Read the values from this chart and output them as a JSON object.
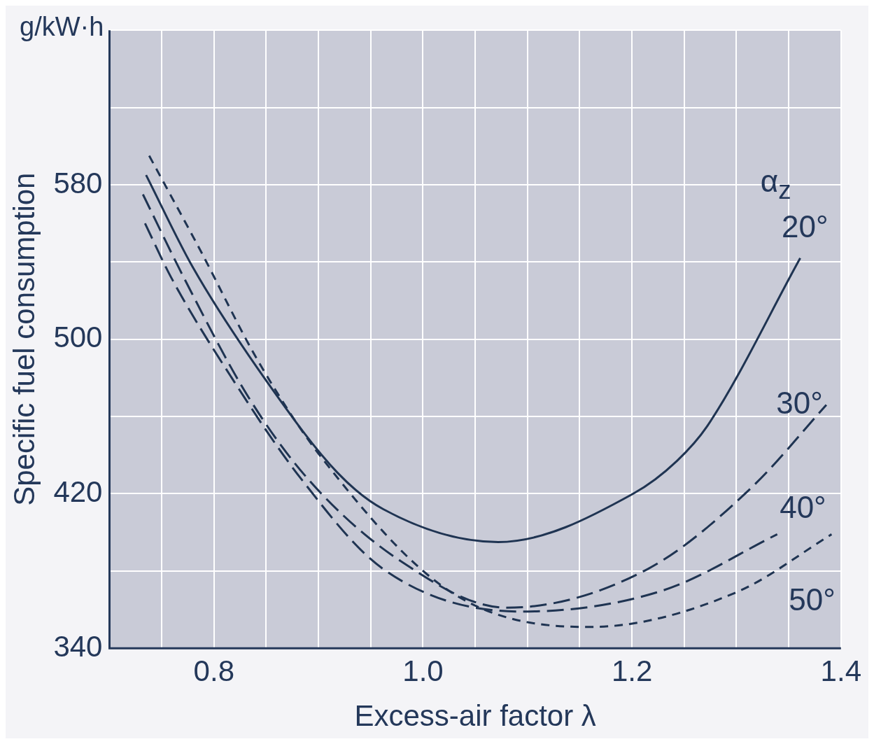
{
  "chart_data": {
    "type": "line",
    "xlabel": "Excess-air factor λ",
    "ylabel": "Specific fuel consumption",
    "legend_title": "α$_{z}$",
    "annotations": [
      "g/kW·h"
    ],
    "xlim": [
      0.7,
      1.4
    ],
    "xticks": [
      {
        "value": 0.75,
        "label": null
      },
      0.8,
      {
        "value": 0.85,
        "label": null
      },
      {
        "value": 0.9,
        "label": null
      },
      {
        "value": 0.95,
        "label": null
      },
      {
        "value": 1,
        "label": "1.0"
      },
      {
        "value": 1.05,
        "label": null
      },
      {
        "value": 1.1,
        "label": null
      },
      {
        "value": 1.15,
        "label": null
      },
      1.2,
      {
        "value": 1.25,
        "label": null
      },
      {
        "value": 1.3,
        "label": null
      },
      {
        "value": 1.35,
        "label": null
      },
      1.4
    ],
    "ylim": [
      340,
      660
    ],
    "yticks": [
      340,
      {
        "value": 380,
        "label": null
      },
      420,
      {
        "value": 460,
        "label": null
      },
      500,
      {
        "value": 540,
        "label": null
      },
      580,
      {
        "value": 620,
        "label": null
      },
      {
        "value": 660,
        "label": null
      }
    ],
    "grid": true,
    "marker": "none",
    "series": [
      {
        "name": "20°",
        "color": "#1f3452",
        "line_style": "solid",
        "x": [
          0.735,
          0.78,
          0.852,
          0.918,
          0.962,
          1.072,
          1.201,
          1.243,
          1.272,
          1.361
        ],
        "values": [
          585,
          537,
          477,
          431,
          412,
          395,
          420,
          437,
          455,
          542
        ]
      },
      {
        "name": "30°",
        "color": "#1f3452",
        "line_style": "dashed",
        "x": [
          0.732,
          0.772,
          0.833,
          0.891,
          0.979,
          1.08,
          1.215,
          1.314,
          1.386
        ],
        "values": [
          575,
          531,
          470,
          427,
          385,
          361,
          381,
          423,
          466
        ]
      },
      {
        "name": "40°",
        "color": "#1f3452",
        "line_style": "dashed",
        "x": [
          0.734,
          0.759,
          0.817,
          0.883,
          0.962,
          1.094,
          1.23,
          1.339
        ],
        "values": [
          560,
          532,
          480,
          428,
          381,
          359,
          370,
          399
        ]
      },
      {
        "name": "50°",
        "color": "#1f3452",
        "line_style": "dashed",
        "x": [
          0.738,
          0.786,
          0.843,
          0.904,
          1.027,
          1.159,
          1.3,
          1.391
        ],
        "values": [
          595,
          547,
          488,
          438,
          369,
          351,
          369,
          399
        ]
      }
    ]
  }
}
